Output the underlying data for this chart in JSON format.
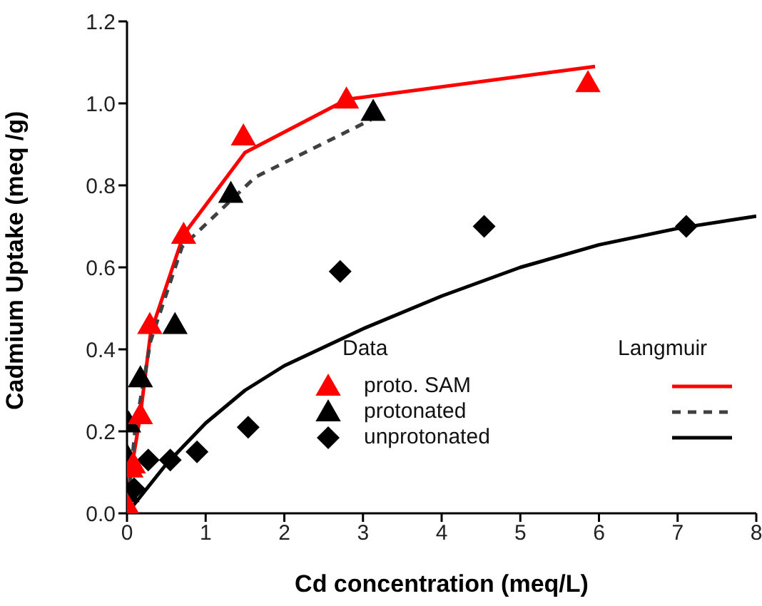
{
  "chart_data": {
    "type": "scatter",
    "xlabel": "Cd concentration (meq/L)",
    "ylabel": "Cadmium Uptake (meq /g)",
    "xlim": [
      0,
      8
    ],
    "xticks": [
      0,
      1,
      2,
      3,
      4,
      5,
      6,
      7,
      8
    ],
    "ylim": [
      0,
      1.2
    ],
    "yticks": [
      {
        "value": 0,
        "label": "0.0"
      },
      {
        "value": 0.2,
        "label": "0.2"
      },
      {
        "value": 0.4,
        "label": "0.4"
      },
      {
        "value": 0.6,
        "label": "0.6"
      },
      {
        "value": 0.8,
        "label": "0.8"
      },
      {
        "value": 1,
        "label": "1.0"
      },
      {
        "value": 1.2,
        "label": "1.2"
      }
    ],
    "legend": "bottom",
    "legend_title": "Data",
    "annotations": [
      "Langmuir"
    ],
    "grid": false,
    "series": [
      {
        "name": "proto. SAM",
        "marker": "triangle",
        "color": "#ff0000",
        "x": [
          0,
          0.05,
          0.08,
          0.17,
          0.29,
          0.72,
          1.48,
          2.79,
          5.86
        ],
        "values": [
          0.02,
          0.11,
          0.12,
          0.24,
          0.46,
          0.68,
          0.92,
          1.01,
          1.05
        ]
      },
      {
        "name": "protonated",
        "marker": "triangle",
        "color": "#000000",
        "x": [
          0,
          0,
          0.02,
          0.17,
          0.61,
          1.32,
          3.13
        ],
        "values": [
          0.05,
          0.14,
          0.22,
          0.33,
          0.46,
          0.78,
          0.98
        ]
      },
      {
        "name": "unprotonated",
        "marker": "diamond",
        "color": "#000000",
        "x": [
          0.09,
          0.27,
          0.55,
          0.89,
          1.54,
          2.71,
          4.54,
          7.11
        ],
        "values": [
          0.06,
          0.13,
          0.13,
          0.15,
          0.21,
          0.59,
          0.7,
          0.7
        ]
      },
      {
        "type": "line",
        "line_style": "solid",
        "color": "#ff0000",
        "x": [
          0,
          0.05,
          0.17,
          0.3,
          0.72,
          1.5,
          2.8,
          5.95
        ],
        "values": [
          0,
          0.1,
          0.24,
          0.44,
          0.68,
          0.88,
          1.01,
          1.09
        ]
      },
      {
        "type": "line",
        "line_style": "dashed",
        "color": "#404040",
        "x": [
          0,
          0.1,
          0.3,
          0.7,
          1.63,
          3.1
        ],
        "values": [
          0,
          0.2,
          0.42,
          0.65,
          0.82,
          0.96
        ]
      },
      {
        "type": "line",
        "line_style": "solid",
        "color": "#000000",
        "x": [
          0,
          0.5,
          1,
          1.5,
          2,
          3,
          4,
          5,
          6,
          7,
          8
        ],
        "values": [
          0,
          0.12,
          0.22,
          0.3,
          0.36,
          0.45,
          0.53,
          0.6,
          0.655,
          0.695,
          0.725
        ]
      }
    ]
  }
}
